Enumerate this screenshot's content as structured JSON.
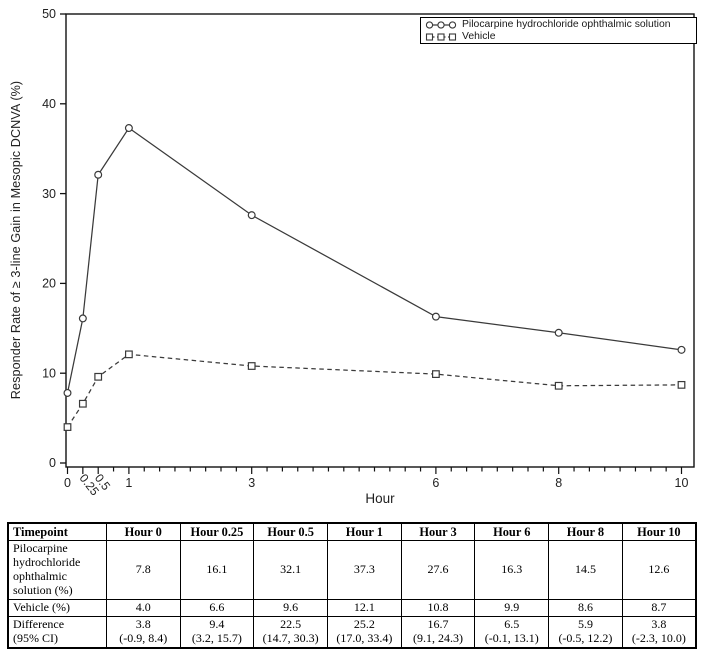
{
  "chart_data": {
    "type": "line",
    "title": "",
    "xlabel": "Hour",
    "ylabel": "Responder Rate of ≥ 3-line Gain in Mesopic DCNVA (%)",
    "x": [
      0,
      0.25,
      0.5,
      1,
      3,
      6,
      8,
      10
    ],
    "series": [
      {
        "name": "Pilocarpine hydrochloride ophthalmic solution",
        "marker": "circle",
        "line": "solid",
        "values": [
          7.8,
          16.1,
          32.1,
          37.3,
          27.6,
          16.3,
          14.5,
          12.6
        ]
      },
      {
        "name": "Vehicle",
        "marker": "square",
        "line": "dashed",
        "values": [
          4.0,
          6.6,
          9.6,
          12.1,
          10.8,
          9.9,
          8.6,
          8.7
        ]
      }
    ],
    "ylim": [
      0,
      50
    ],
    "xlim": [
      0,
      10.2
    ],
    "y_ticks": [
      0,
      10,
      20,
      30,
      40,
      50
    ],
    "x_major_ticks": [
      0,
      0.25,
      0.5,
      1,
      3,
      6,
      8,
      10
    ],
    "x_rotated_labels": [
      0.25,
      0.5
    ],
    "x_minor_step": 0.25,
    "grid": false,
    "legend_position": "top-right",
    "line_color": "#3a3a3a",
    "axis_color": "#111111"
  },
  "table": {
    "header": [
      "Timepoint",
      "Hour 0",
      "Hour 0.25",
      "Hour 0.5",
      "Hour 1",
      "Hour 3",
      "Hour 6",
      "Hour 8",
      "Hour 10"
    ],
    "rows": [
      {
        "label": "Pilocarpine hydrochloride ophthalmic solution (%)",
        "values": [
          "7.8",
          "16.1",
          "32.1",
          "37.3",
          "27.6",
          "16.3",
          "14.5",
          "12.6"
        ]
      },
      {
        "label": "Vehicle (%)",
        "values": [
          "4.0",
          "6.6",
          "9.6",
          "12.1",
          "10.8",
          "9.9",
          "8.6",
          "8.7"
        ]
      },
      {
        "label": "Difference\n(95% CI)",
        "values": [
          "3.8\n(-0.9, 8.4)",
          "9.4\n(3.2, 15.7)",
          "22.5\n(14.7, 30.3)",
          "25.2\n(17.0, 33.4)",
          "16.7\n(9.1, 24.3)",
          "6.5\n(-0.1, 13.1)",
          "5.9\n(-0.5, 12.2)",
          "3.8\n(-2.3, 10.0)"
        ]
      }
    ]
  }
}
